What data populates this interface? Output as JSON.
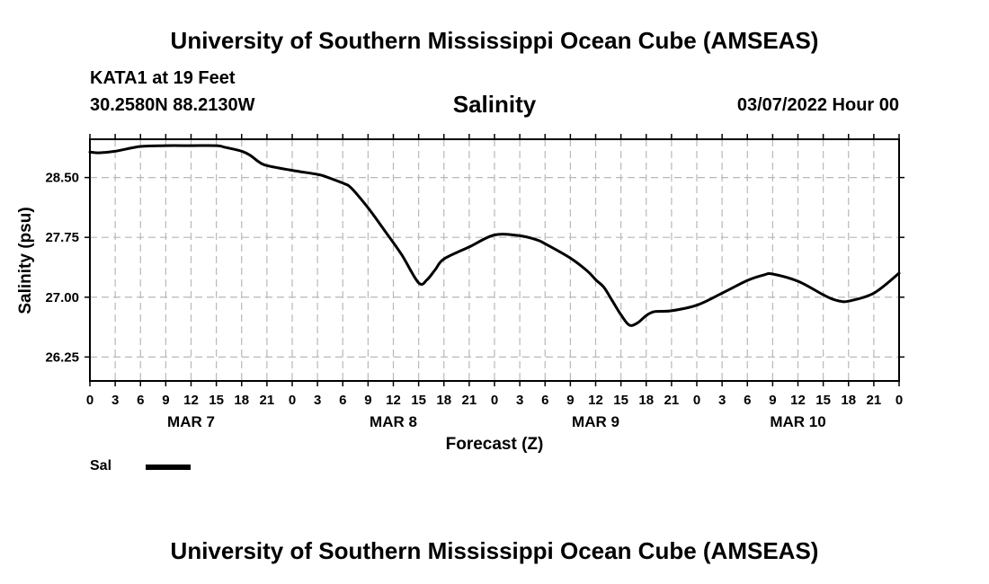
{
  "header": {
    "title": "University of Southern Mississippi Ocean Cube (AMSEAS)",
    "station": "KATA1 at 19 Feet",
    "coords": "30.2580N  88.2130W",
    "variable": "Salinity",
    "datetime": "03/07/2022 Hour 00"
  },
  "footer": {
    "title": "University of Southern Mississippi Ocean Cube (AMSEAS)"
  },
  "legend": {
    "label": "Sal",
    "color": "#000000"
  },
  "chart_data": {
    "type": "line",
    "title": "Salinity",
    "xlabel": "Forecast (Z)",
    "ylabel": "Salinity (psu)",
    "xlim": [
      0,
      96
    ],
    "ylim": [
      25.95,
      28.98
    ],
    "grid": true,
    "yticks": [
      {
        "value": 28.5,
        "label": "28.50"
      },
      {
        "value": 27.75,
        "label": "27.75"
      },
      {
        "value": 27.0,
        "label": "27.00"
      },
      {
        "value": 26.25,
        "label": "26.25"
      }
    ],
    "xticks": [
      {
        "value": 0,
        "label": "0"
      },
      {
        "value": 3,
        "label": "3"
      },
      {
        "value": 6,
        "label": "6"
      },
      {
        "value": 9,
        "label": "9"
      },
      {
        "value": 12,
        "label": "12"
      },
      {
        "value": 15,
        "label": "15"
      },
      {
        "value": 18,
        "label": "18"
      },
      {
        "value": 21,
        "label": "21"
      },
      {
        "value": 24,
        "label": "0"
      },
      {
        "value": 27,
        "label": "3"
      },
      {
        "value": 30,
        "label": "6"
      },
      {
        "value": 33,
        "label": "9"
      },
      {
        "value": 36,
        "label": "12"
      },
      {
        "value": 39,
        "label": "15"
      },
      {
        "value": 42,
        "label": "18"
      },
      {
        "value": 45,
        "label": "21"
      },
      {
        "value": 48,
        "label": "0"
      },
      {
        "value": 51,
        "label": "3"
      },
      {
        "value": 54,
        "label": "6"
      },
      {
        "value": 57,
        "label": "9"
      },
      {
        "value": 60,
        "label": "12"
      },
      {
        "value": 63,
        "label": "15"
      },
      {
        "value": 66,
        "label": "18"
      },
      {
        "value": 69,
        "label": "21"
      },
      {
        "value": 72,
        "label": "0"
      },
      {
        "value": 75,
        "label": "3"
      },
      {
        "value": 78,
        "label": "6"
      },
      {
        "value": 81,
        "label": "9"
      },
      {
        "value": 84,
        "label": "12"
      },
      {
        "value": 87,
        "label": "15"
      },
      {
        "value": 90,
        "label": "18"
      },
      {
        "value": 93,
        "label": "21"
      },
      {
        "value": 96,
        "label": "0"
      }
    ],
    "day_labels": [
      {
        "value": 12,
        "label": "MAR 7"
      },
      {
        "value": 36,
        "label": "MAR 8"
      },
      {
        "value": 60,
        "label": "MAR 9"
      },
      {
        "value": 84,
        "label": "MAR 10"
      }
    ],
    "series": [
      {
        "name": "Sal",
        "color": "#000000",
        "x": [
          0,
          1,
          3,
          6,
          9,
          12,
          15,
          16,
          18,
          19,
          20,
          21,
          24,
          27,
          28,
          30,
          31,
          33,
          35,
          37,
          39,
          40,
          41,
          42,
          45,
          48,
          51,
          53,
          54,
          57,
          59,
          60,
          61,
          62,
          63,
          64,
          65,
          66,
          67,
          69,
          72,
          75,
          78,
          80,
          81,
          84,
          87,
          88,
          89,
          90,
          93,
          96
        ],
        "y": [
          28.82,
          28.81,
          28.83,
          28.89,
          28.9,
          28.9,
          28.9,
          28.88,
          28.83,
          28.78,
          28.7,
          28.65,
          28.59,
          28.54,
          28.51,
          28.43,
          28.37,
          28.12,
          27.83,
          27.53,
          27.18,
          27.22,
          27.35,
          27.48,
          27.63,
          27.78,
          27.77,
          27.72,
          27.67,
          27.49,
          27.33,
          27.22,
          27.12,
          26.95,
          26.78,
          26.65,
          26.68,
          26.77,
          26.82,
          26.83,
          26.9,
          27.05,
          27.21,
          27.28,
          27.29,
          27.2,
          27.03,
          26.98,
          26.95,
          26.95,
          27.05,
          27.3
        ]
      }
    ]
  }
}
